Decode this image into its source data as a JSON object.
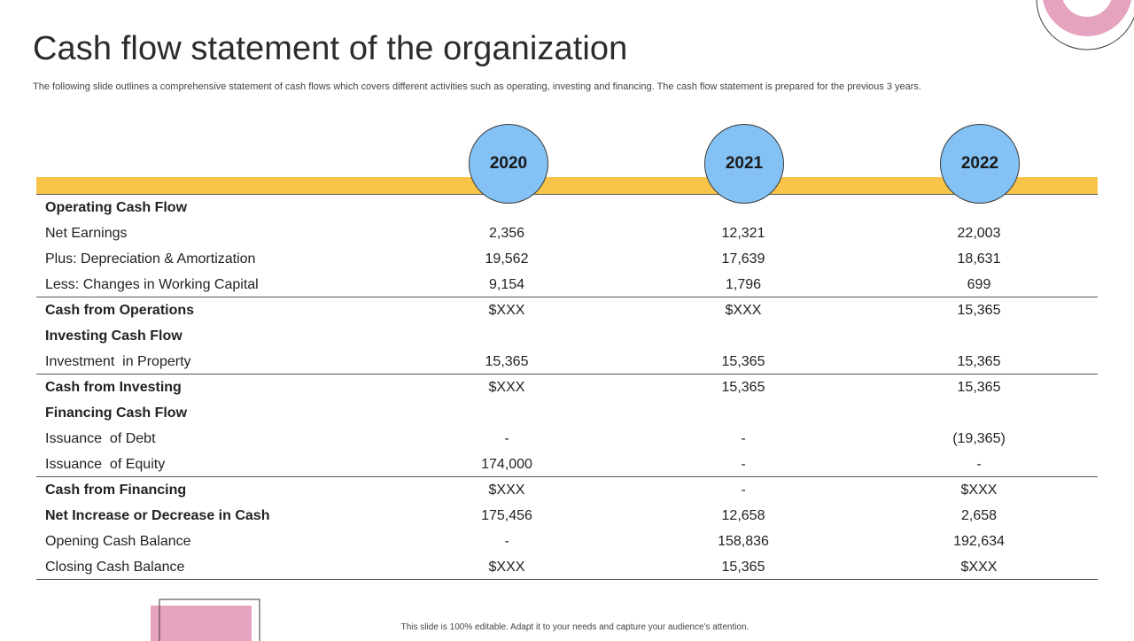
{
  "title": "Cash flow statement of the organization",
  "subtitle": "The following slide outlines a comprehensive statement of cash flows which covers different activities such as operating, investing and financing. The cash flow statement is prepared for the previous 3 years.",
  "years": [
    "2020",
    "2021",
    "2022"
  ],
  "rows": [
    {
      "label": "Operating Cash Flow",
      "v": [
        "",
        "",
        ""
      ]
    },
    {
      "label": "Net Earnings",
      "v": [
        "2,356",
        "12,321",
        "22,003"
      ]
    },
    {
      "label": "Plus: Depreciation & Amortization",
      "v": [
        "19,562",
        "17,639",
        "18,631"
      ]
    },
    {
      "label": "Less: Changes in Working Capital",
      "v": [
        "9,154",
        "1,796",
        "699"
      ]
    },
    {
      "label": "Cash from Operations",
      "v": [
        "$XXX",
        "$XXX",
        "15,365"
      ]
    },
    {
      "label": "Investing Cash Flow",
      "v": [
        "",
        "",
        ""
      ]
    },
    {
      "label": "Investment  in Property",
      "v": [
        "15,365",
        "15,365",
        "15,365"
      ]
    },
    {
      "label": "Cash from Investing",
      "v": [
        "$XXX",
        "15,365",
        "15,365"
      ]
    },
    {
      "label": "Financing Cash Flow",
      "v": [
        "",
        "",
        ""
      ]
    },
    {
      "label": "Issuance  of Debt",
      "v": [
        "-",
        "-",
        "(19,365)"
      ]
    },
    {
      "label": "Issuance  of Equity",
      "v": [
        "174,000",
        "-",
        "-"
      ]
    },
    {
      "label": "Cash from Financing",
      "v": [
        "$XXX",
        "-",
        "$XXX"
      ]
    },
    {
      "label": "Net Increase or Decrease in Cash",
      "v": [
        "175,456",
        "12,658",
        "2,658"
      ]
    },
    {
      "label": "Opening Cash Balance",
      "v": [
        "-",
        "158,836",
        "192,634"
      ]
    },
    {
      "label": "Closing Cash Balance",
      "v": [
        "$XXX",
        "15,365",
        "$XXX"
      ]
    }
  ],
  "footer": "This slide is 100% editable.  Adapt it to your needs and capture your audience's attention.",
  "colors": {
    "accent_yellow": "#f8c44a",
    "circle_blue": "#84c2f5",
    "deco_pink": "#e6a3c0"
  }
}
